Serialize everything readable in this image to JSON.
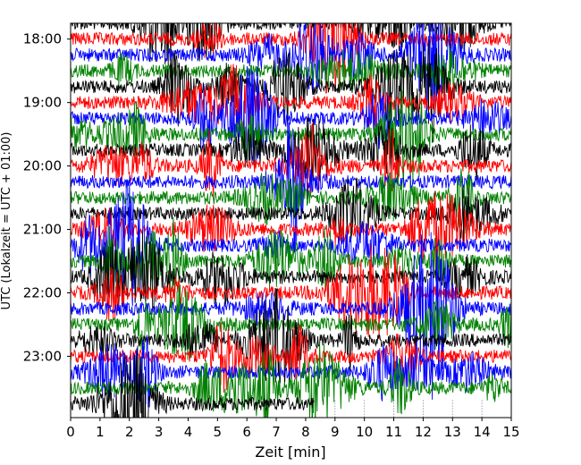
{
  "chart_data": {
    "type": "line",
    "title": "",
    "xlabel": "Zeit  [min]",
    "ylabel": "UTC (Lokalzeit = UTC + 01:00)",
    "xlim": [
      0,
      15
    ],
    "x_ticks": [
      0,
      1,
      2,
      3,
      4,
      5,
      6,
      7,
      8,
      9,
      10,
      11,
      12,
      13,
      14,
      15
    ],
    "x_tick_labels": [
      "0",
      "1",
      "2",
      "3",
      "4",
      "5",
      "6",
      "7",
      "8",
      "9",
      "10",
      "11",
      "12",
      "13",
      "14",
      "15"
    ],
    "y_axis_start": "17:45",
    "y_axis_end": "23:58",
    "y_ticks": [
      "18:00",
      "19:00",
      "20:00",
      "21:00",
      "22:00",
      "23:00"
    ],
    "trace_interval_min": 15,
    "trace_start_times": [
      "17:45",
      "18:00",
      "18:15",
      "18:30",
      "18:45",
      "19:00",
      "19:15",
      "19:30",
      "19:45",
      "20:00",
      "20:15",
      "20:30",
      "20:45",
      "21:00",
      "21:15",
      "21:30",
      "21:45",
      "22:00",
      "22:15",
      "22:30",
      "22:45",
      "23:00",
      "23:15",
      "23:30",
      "23:45"
    ],
    "series_colors": [
      "#000000",
      "#ff0000",
      "#0000ff",
      "#008000"
    ],
    "last_trace_end_min": 8.3,
    "grid": false
  }
}
